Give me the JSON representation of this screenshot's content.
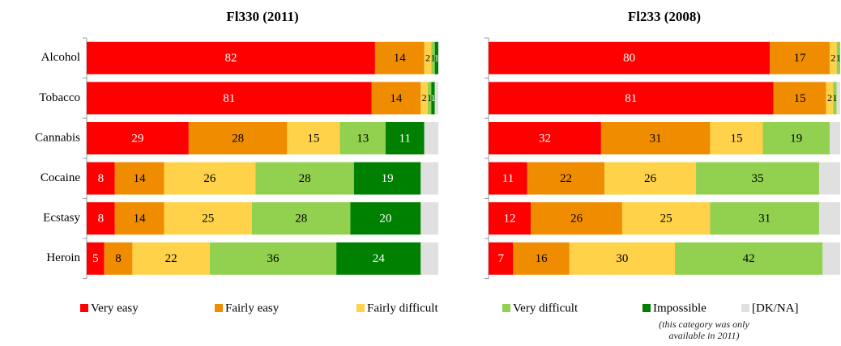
{
  "chart_data": [
    {
      "type": "stacked-bar-horizontal",
      "title": "Fl330 (2011)",
      "categories": [
        "Alcohol",
        "Tobacco",
        "Cannabis",
        "Cocaine",
        "Ecstasy",
        "Heroin"
      ],
      "xlim": [
        0,
        100
      ],
      "series": [
        {
          "name": "Very easy",
          "color": "#ff0000",
          "label_color": "#ffffff",
          "values": [
            82,
            81,
            29,
            8,
            8,
            5
          ]
        },
        {
          "name": "Fairly easy",
          "color": "#f08c00",
          "label_color": "#000000",
          "values": [
            14,
            14,
            28,
            14,
            14,
            8
          ]
        },
        {
          "name": "Fairly difficult",
          "color": "#ffd24a",
          "label_color": "#000000",
          "values": [
            2,
            2,
            15,
            26,
            25,
            22
          ]
        },
        {
          "name": "Very difficult",
          "color": "#92d050",
          "label_color": "#000000",
          "values": [
            1,
            1,
            13,
            28,
            28,
            36
          ]
        },
        {
          "name": "Impossible",
          "color": "#008000",
          "label_color": "#ffffff",
          "values": [
            1,
            1,
            11,
            19,
            20,
            24
          ]
        },
        {
          "name": "[DK/NA]",
          "color": "#e0e0e0",
          "label_color": "#000000",
          "labels": false,
          "values": [
            0,
            1,
            4,
            5,
            5,
            5
          ]
        }
      ],
      "legend_note": "(this category was only available in 2011)"
    },
    {
      "type": "stacked-bar-horizontal",
      "title": "Fl233 (2008)",
      "xlim": [
        0,
        100
      ],
      "series": [
        {
          "name": "Very easy",
          "color": "#ff0000",
          "label_color": "#ffffff",
          "values": [
            80,
            81,
            32,
            11,
            12,
            7
          ]
        },
        {
          "name": "Fairly easy",
          "color": "#f08c00",
          "label_color": "#000000",
          "values": [
            17,
            15,
            31,
            22,
            26,
            16
          ]
        },
        {
          "name": "Fairly difficult",
          "color": "#ffd24a",
          "label_color": "#000000",
          "values": [
            2,
            2,
            15,
            26,
            25,
            30
          ]
        },
        {
          "name": "Very difficult",
          "color": "#92d050",
          "label_color": "#000000",
          "values": [
            1,
            1,
            19,
            35,
            31,
            42
          ]
        },
        {
          "name": "[DK/NA]",
          "color": "#e0e0e0",
          "label_color": "#000000",
          "labels": false,
          "values": [
            0,
            1,
            3,
            6,
            6,
            5
          ]
        }
      ]
    }
  ]
}
